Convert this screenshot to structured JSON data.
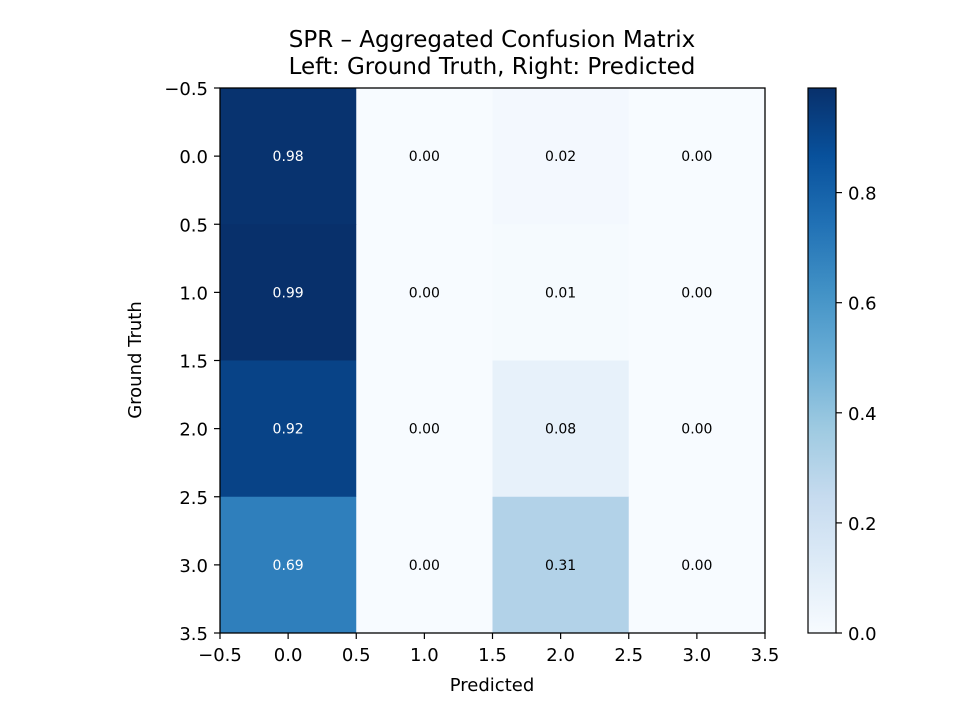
{
  "chart_data": {
    "type": "heatmap",
    "title_lines": [
      "SPR – Aggregated Confusion Matrix",
      "Left: Ground Truth, Right: Predicted"
    ],
    "xlabel": "Predicted",
    "ylabel": "Ground Truth",
    "xlim": [
      -0.5,
      3.5
    ],
    "ylim": [
      3.5,
      -0.5
    ],
    "x_ticks": [
      "−0.5",
      "0.0",
      "0.5",
      "1.0",
      "1.5",
      "2.0",
      "2.5",
      "3.0",
      "3.5"
    ],
    "y_ticks": [
      "−0.5",
      "0.0",
      "0.5",
      "1.0",
      "1.5",
      "2.0",
      "2.5",
      "3.0",
      "3.5"
    ],
    "rows": [
      0,
      1,
      2,
      3
    ],
    "cols": [
      0,
      1,
      2,
      3
    ],
    "values": [
      [
        0.98,
        0.0,
        0.02,
        0.0
      ],
      [
        0.99,
        0.0,
        0.01,
        0.0
      ],
      [
        0.92,
        0.0,
        0.08,
        0.0
      ],
      [
        0.69,
        0.0,
        0.31,
        0.0
      ]
    ],
    "cell_labels": [
      [
        "0.98",
        "0.00",
        "0.02",
        "0.00"
      ],
      [
        "0.99",
        "0.00",
        "0.01",
        "0.00"
      ],
      [
        "0.92",
        "0.00",
        "0.08",
        "0.00"
      ],
      [
        "0.69",
        "0.00",
        "0.31",
        "0.00"
      ]
    ],
    "colormap": "Blues",
    "colorbar": {
      "range": [
        0.0,
        0.99
      ],
      "ticks": [
        "0.0",
        "0.2",
        "0.4",
        "0.6",
        "0.8"
      ]
    },
    "grid": false
  }
}
